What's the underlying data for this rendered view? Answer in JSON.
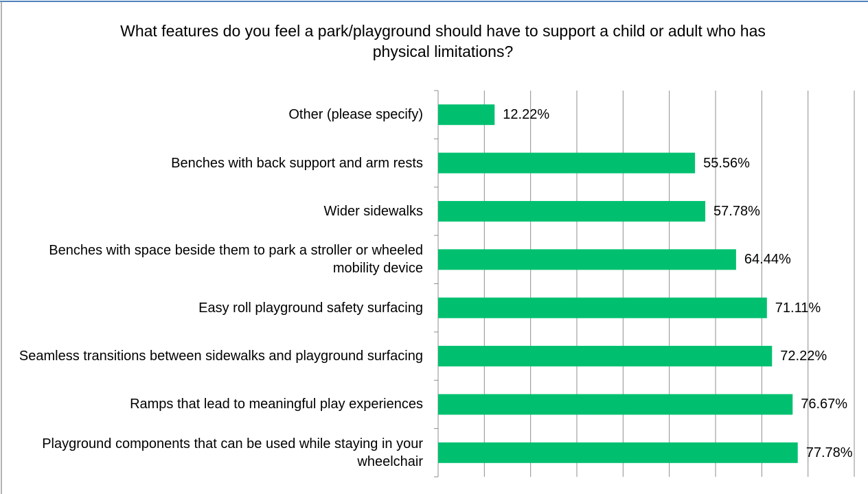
{
  "chart_data": {
    "type": "hbar",
    "title": "What features do you feel a park/playground should have to support a child or adult who has physical limitations?",
    "categories": [
      "Other (please specify)",
      "Benches with back support and arm rests",
      "Wider sidewalks",
      "Benches with space beside them to park a stroller or wheeled mobility device",
      "Easy roll playground safety surfacing",
      "Seamless transitions between sidewalks and playground surfacing",
      "Ramps that lead to meaningful play experiences",
      "Playground components that can be used while staying in your wheelchair"
    ],
    "values": [
      12.22,
      55.56,
      57.78,
      64.44,
      71.11,
      72.22,
      76.67,
      77.78
    ],
    "value_labels": [
      "12.22%",
      "55.56%",
      "57.78%",
      "64.44%",
      "71.11%",
      "72.22%",
      "76.67%",
      "77.78%"
    ],
    "color": "#00c070",
    "xlim": [
      0,
      90
    ],
    "xticks": [
      0,
      10,
      20,
      30,
      40,
      50,
      60,
      70,
      80,
      90
    ],
    "grid": true
  }
}
